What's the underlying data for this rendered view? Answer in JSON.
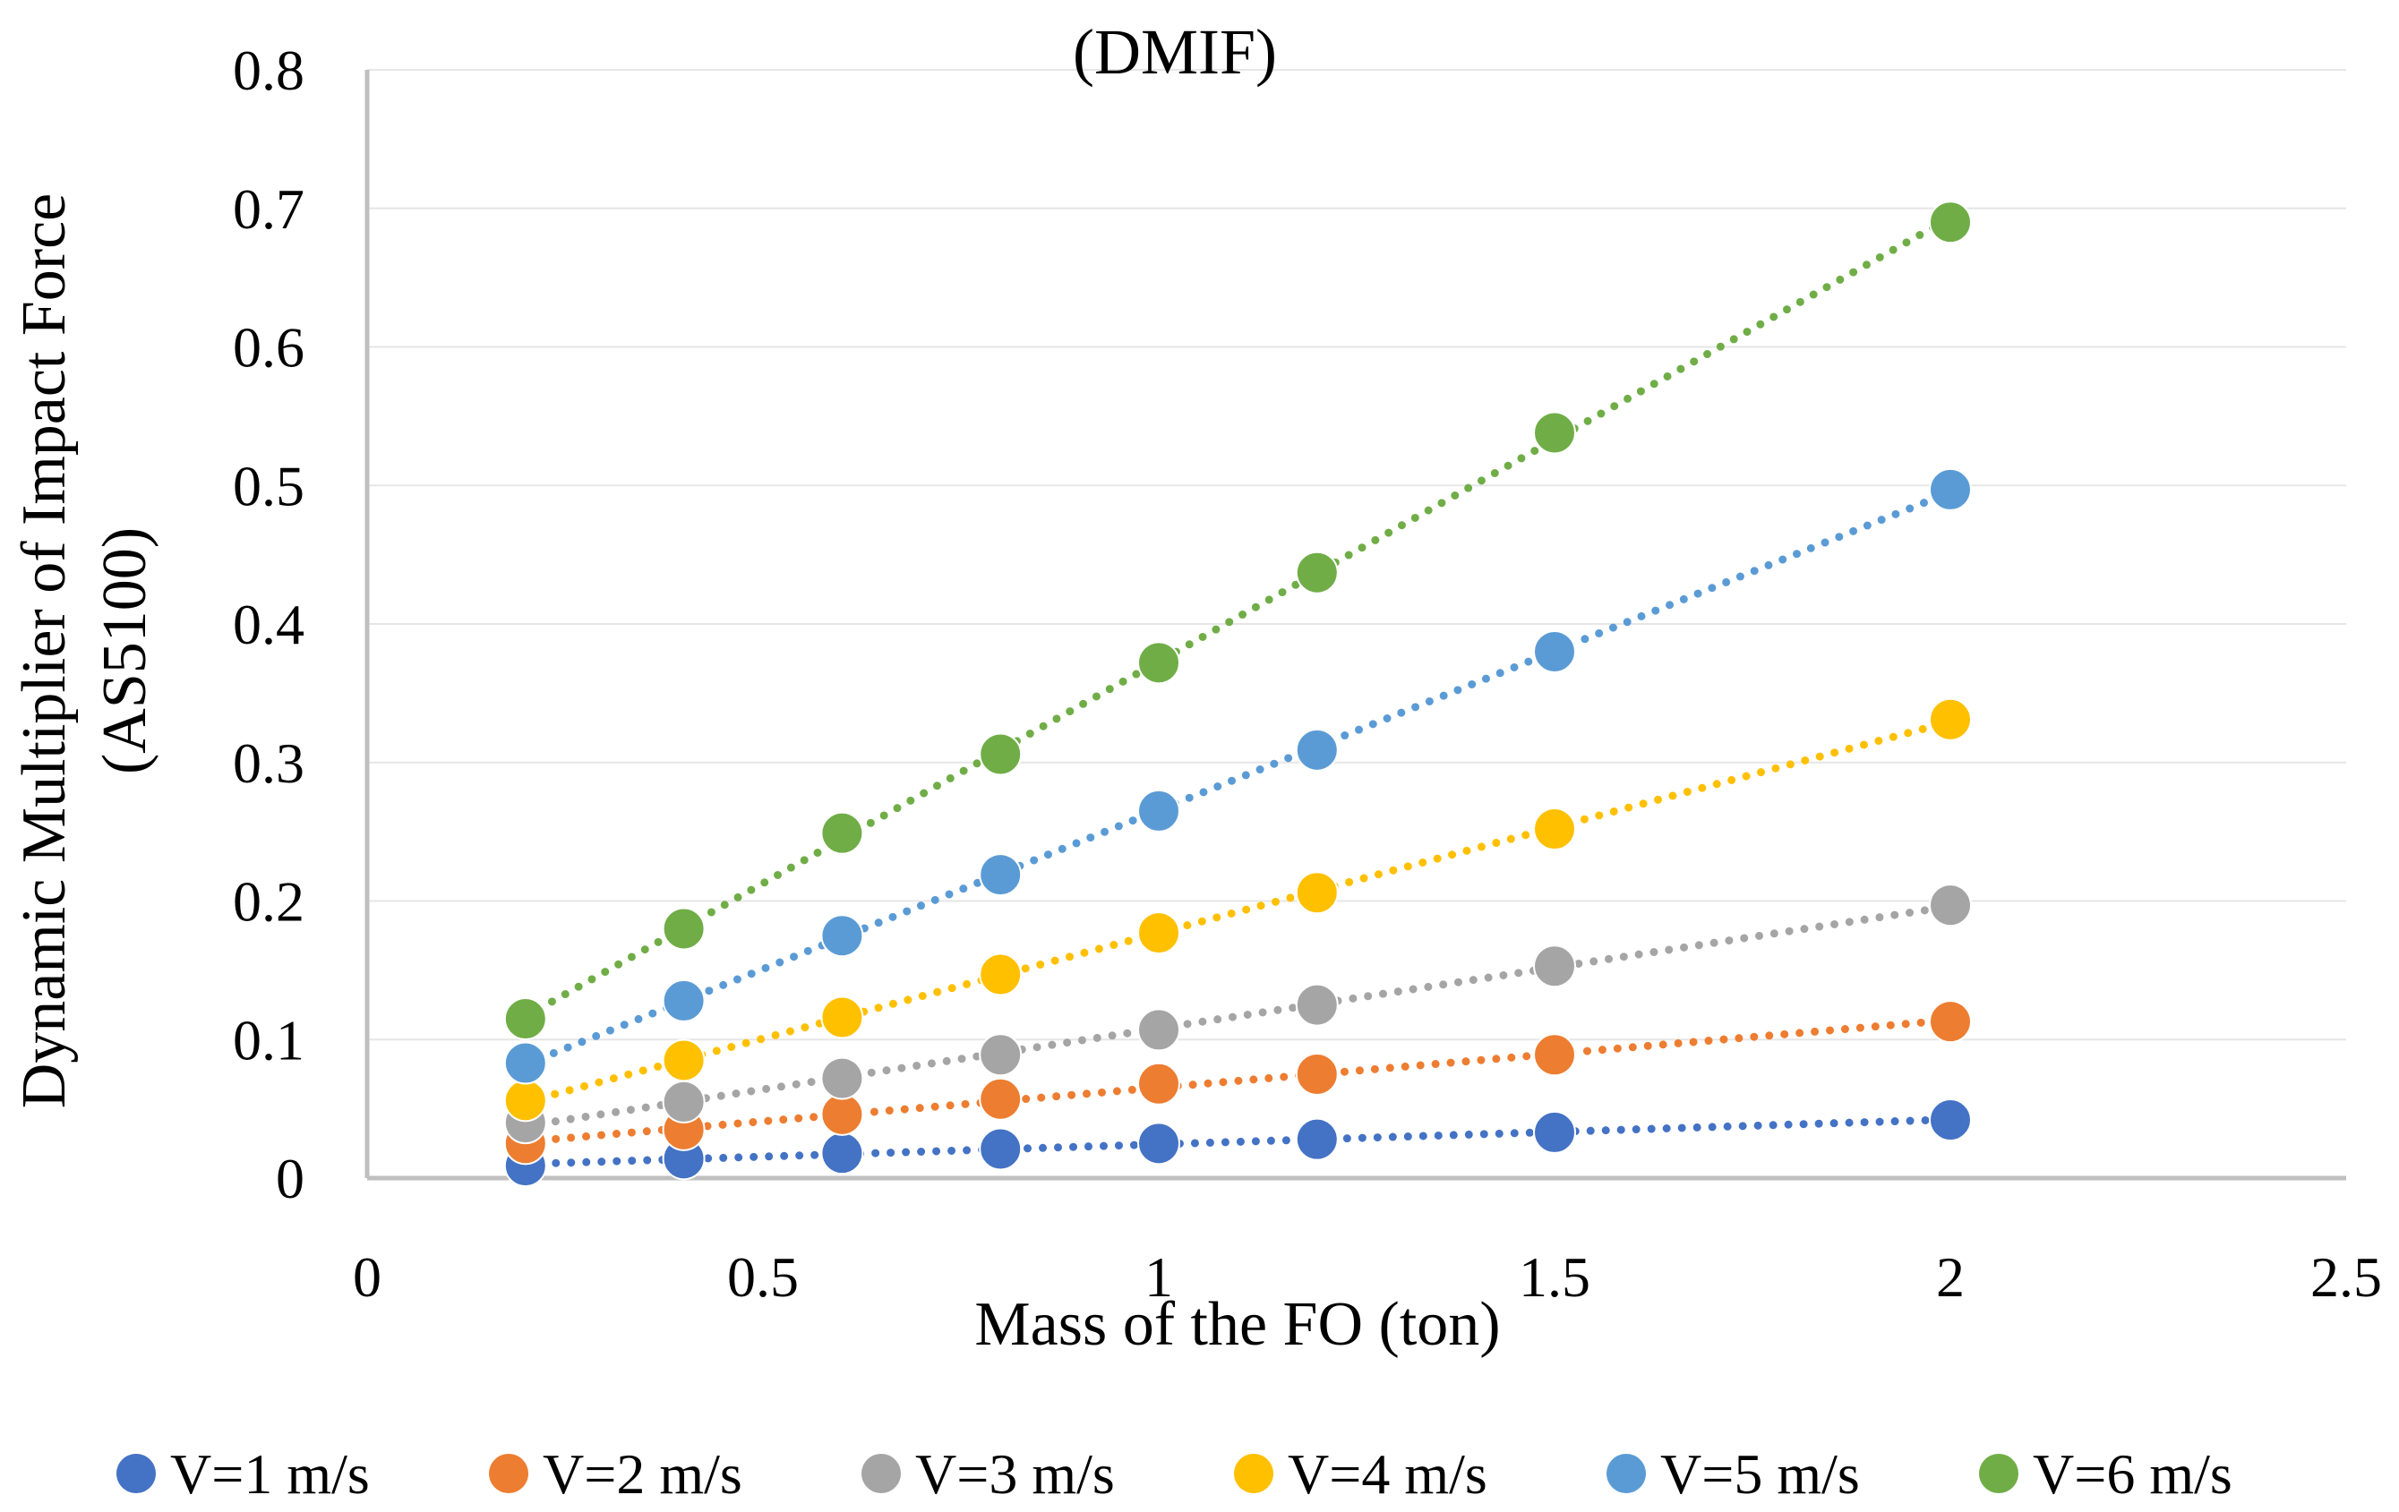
{
  "chart_data": {
    "type": "scatter",
    "title": "(DMIF)",
    "xlabel": "Mass of the FO (ton)",
    "ylabel_lines": [
      "Dynamic Multiplier of Impact Force",
      "(AS5100)"
    ],
    "xlim": [
      0,
      2.5
    ],
    "ylim": [
      0,
      0.8
    ],
    "xticks": [
      0,
      0.5,
      1,
      1.5,
      2,
      2.5
    ],
    "xtick_labels": [
      "0",
      "0.5",
      "1",
      "1.5",
      "2",
      "2.5"
    ],
    "yticks": [
      0,
      0.1,
      0.2,
      0.3,
      0.4,
      0.5,
      0.6,
      0.7,
      0.8
    ],
    "ytick_labels": [
      "0",
      "0.1",
      "0.2",
      "0.3",
      "0.4",
      "0.5",
      "0.6",
      "0.7",
      "0.8"
    ],
    "grid": true,
    "trendline": "linear, dotted",
    "legend_position": "bottom",
    "x": [
      0.2,
      0.4,
      0.6,
      0.8,
      1.0,
      1.2,
      1.5,
      2.0
    ],
    "series": [
      {
        "name": "V=1 m/s",
        "color": "#4472C4",
        "values": [
          0.009,
          0.014,
          0.018,
          0.021,
          0.025,
          0.028,
          0.033,
          0.042
        ]
      },
      {
        "name": "V=2 m/s",
        "color": "#ED7D31",
        "values": [
          0.025,
          0.035,
          0.046,
          0.057,
          0.068,
          0.075,
          0.089,
          0.113
        ]
      },
      {
        "name": "V=3 m/s",
        "color": "#A5A5A5",
        "values": [
          0.04,
          0.055,
          0.072,
          0.089,
          0.107,
          0.125,
          0.153,
          0.197
        ]
      },
      {
        "name": "V=4 m/s",
        "color": "#FFC000",
        "values": [
          0.056,
          0.085,
          0.116,
          0.147,
          0.177,
          0.206,
          0.252,
          0.331
        ]
      },
      {
        "name": "V=5 m/s",
        "color": "#5B9BD5",
        "values": [
          0.083,
          0.128,
          0.175,
          0.219,
          0.265,
          0.309,
          0.38,
          0.497
        ]
      },
      {
        "name": "V=6 m/s",
        "color": "#70AD47",
        "values": [
          0.115,
          0.18,
          0.249,
          0.306,
          0.372,
          0.437,
          0.538,
          0.69
        ]
      }
    ]
  }
}
